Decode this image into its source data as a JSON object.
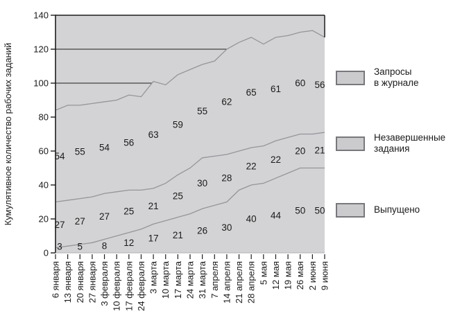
{
  "chart_data": {
    "type": "area",
    "stacked": true,
    "title": "",
    "xlabel": "",
    "ylabel": "Кумулятивное количество рабочих заданий",
    "ylim": [
      0,
      140
    ],
    "ytick_step": 20,
    "grid": false,
    "legend_position": "right",
    "categories": [
      "6 января",
      "13 января",
      "20 января",
      "27 января",
      "3 февраля",
      "10 февраля",
      "17 февраля",
      "24 февраля",
      "3 марта",
      "10 марта",
      "17 марта",
      "24 марта",
      "31 марта",
      "7 апреля",
      "14 апреля",
      "21 апреля",
      "28 апреля",
      "5 мая",
      "12 мая",
      "19 мая",
      "26 мая",
      "2 июня",
      "9 июня"
    ],
    "series": [
      {
        "name": "Выпущено",
        "values": [
          3,
          4,
          5,
          6,
          8,
          10,
          12,
          14,
          17,
          19,
          21,
          23,
          26,
          28,
          30,
          37,
          40,
          41,
          44,
          47,
          50,
          50,
          50
        ]
      },
      {
        "name": "Незавершенные задания",
        "values": [
          27,
          27,
          27,
          27,
          27,
          26,
          25,
          23,
          21,
          22,
          25,
          27,
          30,
          29,
          28,
          23,
          22,
          22,
          22,
          21,
          20,
          20,
          21
        ]
      },
      {
        "name": "Запросы в журнале",
        "values": [
          54,
          56,
          55,
          55,
          54,
          54,
          56,
          55,
          63,
          58,
          59,
          58,
          55,
          56,
          62,
          64,
          65,
          60,
          61,
          60,
          60,
          61,
          56
        ]
      }
    ],
    "point_labels": {
      "note": "values printed on the figure at every second date, centered in each band",
      "indices": [
        0,
        2,
        4,
        6,
        8,
        10,
        12,
        14,
        16,
        18,
        20,
        22
      ],
      "dates": [
        "6 января",
        "20 января",
        "3 февраля",
        "17 февраля",
        "3 марта",
        "17 марта",
        "31 марта",
        "14 апреля",
        "28 апреля",
        "12 мая",
        "26 мая",
        "9 июня"
      ],
      "series": [
        [
          3,
          5,
          8,
          12,
          17,
          21,
          26,
          30,
          40,
          44,
          50,
          50
        ],
        [
          27,
          27,
          27,
          25,
          21,
          25,
          30,
          28,
          22,
          22,
          20,
          21
        ],
        [
          54,
          55,
          54,
          56,
          63,
          59,
          55,
          62,
          65,
          61,
          60,
          56
        ]
      ]
    },
    "reference_lines": [
      100,
      120
    ],
    "legend": [
      {
        "label": "Запросы\nв журнале"
      },
      {
        "label": "Незавершенные\nзадания"
      },
      {
        "label": "Выпущено"
      }
    ],
    "colors": {
      "plot_bg": "#d3d3d5",
      "curve": "#95959a",
      "axis": "#1c1c1c",
      "text": "#1a1a1a",
      "plot_bottom_edge": "#b2b2b5",
      "swatch_fill": "#cbcbce",
      "swatch_border": "#77777c"
    }
  }
}
